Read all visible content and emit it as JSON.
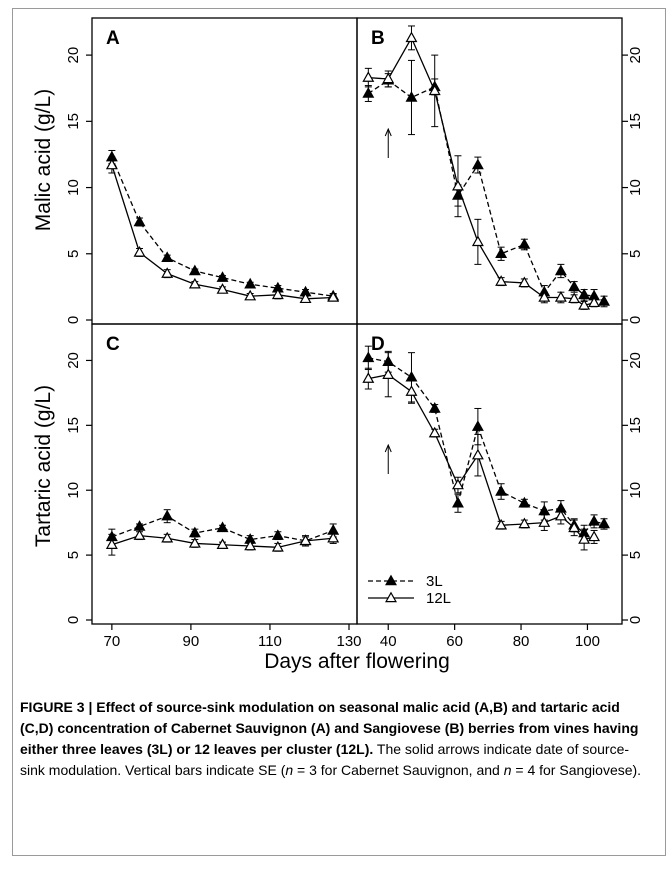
{
  "figure": {
    "ylabel_top": "Malic acid (g/L)",
    "ylabel_bottom": "Tartaric acid (g/L)",
    "xlabel": "Days after flowering",
    "legend": [
      {
        "label": "3L",
        "marker": "filled-triangle",
        "line": "dashed"
      },
      {
        "label": "12L",
        "marker": "open-triangle",
        "line": "solid"
      }
    ],
    "caption": {
      "prefix": "FIGURE 3 | ",
      "bold": "Effect of source-sink modulation on seasonal malic acid (A,B) and tartaric acid (C,D) concentration of Cabernet Sauvignon (A) and Sangiovese (B) berries from vines having either three leaves (3L) or 12 leaves per cluster (12L).",
      "rest_1": " The solid arrows indicate date of source-sink modulation. Vertical bars indicate SE (",
      "n1": "n",
      "rest_2": " = 3 for Cabernet Sauvignon, and ",
      "n2": "n",
      "rest_3": " = 4 for Sangiovese)."
    }
  },
  "chart_data": [
    {
      "panel": "A",
      "type": "line",
      "xlim": [
        67,
        130
      ],
      "ylim": [
        0,
        22.5
      ],
      "xticks": [
        70,
        90,
        110,
        130
      ],
      "yticks": [
        0,
        5,
        10,
        15,
        20
      ],
      "ytick_side": "left",
      "series": [
        {
          "name": "3L",
          "x": [
            70,
            77,
            84,
            91,
            98,
            105,
            112,
            119,
            126
          ],
          "y": [
            12.3,
            7.4,
            4.7,
            3.7,
            3.2,
            2.7,
            2.4,
            2.1,
            1.8
          ],
          "err": [
            0.5,
            0.3,
            0.2,
            0.15,
            0.15,
            0.15,
            0.2,
            0.2,
            0.2
          ]
        },
        {
          "name": "12L",
          "x": [
            70,
            77,
            84,
            91,
            98,
            105,
            112,
            119,
            126
          ],
          "y": [
            11.7,
            5.1,
            3.5,
            2.7,
            2.3,
            1.8,
            1.9,
            1.6,
            1.7
          ],
          "err": [
            0.6,
            0.3,
            0.3,
            0.2,
            0.2,
            0.2,
            0.3,
            0.2,
            0.2
          ]
        }
      ]
    },
    {
      "panel": "B",
      "type": "line",
      "xlim": [
        33,
        108
      ],
      "ylim": [
        0,
        22.5
      ],
      "xticks": [
        40,
        60,
        80,
        100
      ],
      "yticks": [
        0,
        5,
        10,
        15,
        20
      ],
      "ytick_side": "right",
      "arrow_x": 40,
      "series": [
        {
          "name": "3L",
          "x": [
            34,
            40,
            47,
            54,
            61,
            67,
            74,
            81,
            87,
            92,
            96,
            99,
            102,
            105
          ],
          "y": [
            17.1,
            18.1,
            16.8,
            17.6,
            9.4,
            11.7,
            5.0,
            5.7,
            2.1,
            3.7,
            2.5,
            1.9,
            1.8,
            1.4
          ],
          "err": [
            0.6,
            0.5,
            2.8,
            0.6,
            0.8,
            0.6,
            0.5,
            0.4,
            0.5,
            0.5,
            0.4,
            0.4,
            0.5,
            0.4
          ]
        },
        {
          "name": "12L",
          "x": [
            34,
            40,
            47,
            54,
            61,
            67,
            74,
            81,
            87,
            92,
            96,
            99,
            102
          ],
          "y": [
            18.3,
            18.2,
            21.3,
            17.3,
            10.1,
            5.9,
            2.9,
            2.8,
            1.7,
            1.7,
            1.6,
            1.1,
            1.3
          ],
          "err": [
            0.7,
            0.6,
            0.9,
            2.7,
            2.3,
            1.7,
            0.3,
            0.3,
            0.4,
            0.4,
            0.3,
            0.3,
            0.3
          ]
        }
      ]
    },
    {
      "panel": "C",
      "type": "line",
      "xlim": [
        67,
        130
      ],
      "ylim": [
        0,
        22.5
      ],
      "xticks": [
        70,
        90,
        110,
        130
      ],
      "yticks": [
        0,
        5,
        10,
        15,
        20
      ],
      "ytick_side": "left",
      "series": [
        {
          "name": "3L",
          "x": [
            70,
            77,
            84,
            91,
            98,
            105,
            112,
            119,
            126
          ],
          "y": [
            6.4,
            7.2,
            8.0,
            6.7,
            7.1,
            6.2,
            6.5,
            6.1,
            6.9
          ],
          "err": [
            0.6,
            0.2,
            0.5,
            0.3,
            0.2,
            0.3,
            0.3,
            0.3,
            0.5
          ]
        },
        {
          "name": "12L",
          "x": [
            70,
            77,
            84,
            91,
            98,
            105,
            112,
            119,
            126
          ],
          "y": [
            5.8,
            6.5,
            6.3,
            5.9,
            5.8,
            5.7,
            5.6,
            6.1,
            6.3
          ],
          "err": [
            0.8,
            0.3,
            0.3,
            0.3,
            0.2,
            0.3,
            0.3,
            0.4,
            0.4
          ]
        }
      ]
    },
    {
      "panel": "D",
      "type": "line",
      "xlim": [
        33,
        108
      ],
      "ylim": [
        0,
        22.5
      ],
      "xticks": [
        40,
        60,
        80,
        100
      ],
      "yticks": [
        0,
        5,
        10,
        15,
        20
      ],
      "ytick_side": "right",
      "arrow_x": 40,
      "series": [
        {
          "name": "3L",
          "x": [
            34,
            40,
            47,
            54,
            61,
            67,
            74,
            81,
            87,
            92,
            96,
            99,
            102,
            105
          ],
          "y": [
            20.2,
            19.9,
            18.7,
            16.3,
            9.0,
            14.9,
            9.9,
            9.0,
            8.4,
            8.6,
            7.3,
            6.7,
            7.6,
            7.4
          ],
          "err": [
            0.9,
            0.8,
            1.9,
            0.3,
            0.7,
            1.4,
            0.6,
            0.3,
            0.7,
            0.6,
            0.5,
            0.6,
            0.5,
            0.4
          ]
        },
        {
          "name": "12L",
          "x": [
            34,
            40,
            47,
            54,
            61,
            67,
            74,
            81,
            87,
            92,
            96,
            99,
            102
          ],
          "y": [
            18.6,
            18.9,
            17.6,
            14.4,
            10.4,
            12.7,
            7.3,
            7.4,
            7.5,
            8.0,
            7.1,
            6.2,
            6.4
          ],
          "err": [
            0.8,
            1.7,
            0.9,
            0.3,
            0.6,
            1.6,
            0.3,
            0.3,
            0.6,
            0.6,
            0.6,
            0.8,
            0.5
          ]
        }
      ]
    }
  ]
}
